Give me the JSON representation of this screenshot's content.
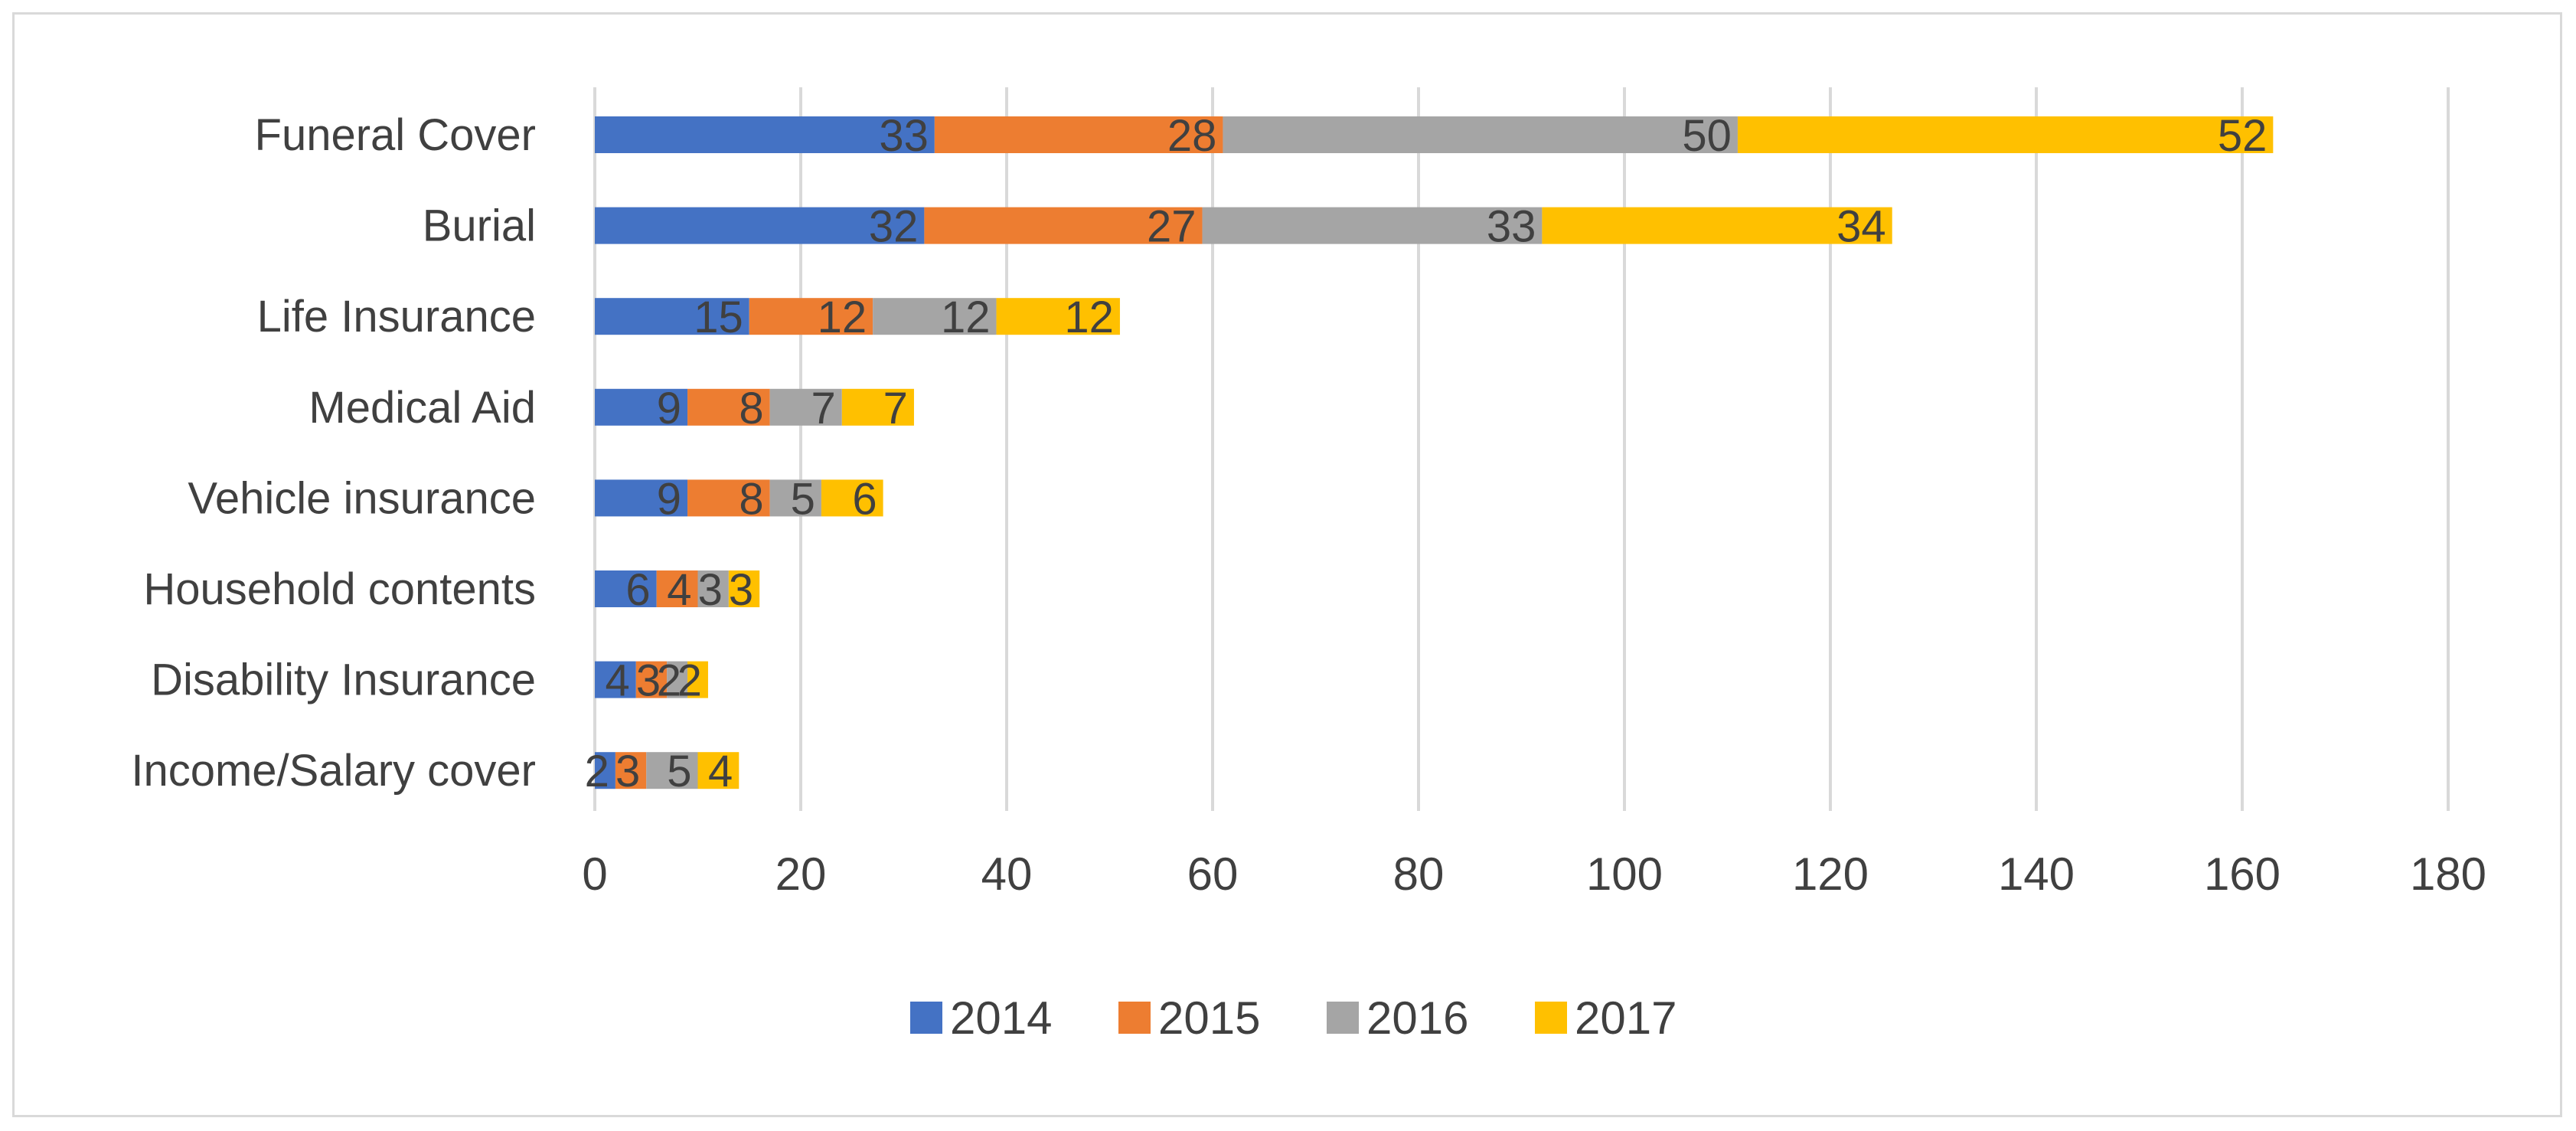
{
  "chart_data": {
    "type": "bar",
    "orientation": "horizontal",
    "stacked": true,
    "title": "",
    "xlabel": "",
    "ylabel": "",
    "categories": [
      "Funeral Cover",
      "Burial",
      "Life Insurance",
      "Medical Aid",
      "Vehicle insurance",
      "Household contents",
      "Disability Insurance",
      "Income/Salary cover"
    ],
    "series": [
      {
        "name": "2014",
        "color": "#4472c4",
        "values": [
          33,
          32,
          15,
          9,
          9,
          6,
          4,
          2
        ]
      },
      {
        "name": "2015",
        "color": "#ed7d31",
        "values": [
          28,
          27,
          12,
          8,
          8,
          4,
          3,
          3
        ]
      },
      {
        "name": "2016",
        "color": "#a5a5a5",
        "values": [
          50,
          33,
          12,
          7,
          5,
          3,
          2,
          5
        ]
      },
      {
        "name": "2017",
        "color": "#ffc000",
        "values": [
          52,
          34,
          12,
          7,
          6,
          3,
          2,
          4
        ]
      }
    ],
    "xlim": [
      0,
      180
    ],
    "xticks": [
      0,
      20,
      40,
      60,
      80,
      100,
      120,
      140,
      160,
      180
    ],
    "data_labels": true,
    "grid": "vertical",
    "legend": "bottom"
  }
}
